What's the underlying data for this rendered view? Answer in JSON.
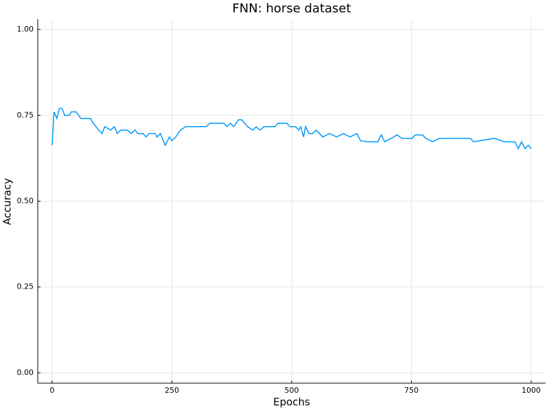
{
  "chart_data": {
    "type": "line",
    "title": "FNN: horse dataset",
    "x_label": "Epochs",
    "y_label": "Accuracy",
    "x": [
      0,
      4,
      10,
      15,
      21,
      26,
      36,
      40,
      50,
      60,
      80,
      86,
      97,
      104,
      110,
      122,
      130,
      136,
      143,
      157,
      165,
      173,
      179,
      190,
      196,
      202,
      215,
      219,
      226,
      236,
      245,
      250,
      258,
      268,
      279,
      300,
      322,
      329,
      358,
      365,
      372,
      379,
      389,
      396,
      408,
      419,
      426,
      433,
      443,
      465,
      472,
      490,
      496,
      508,
      515,
      519,
      525,
      529,
      536,
      544,
      551,
      558,
      565,
      579,
      594,
      608,
      622,
      636,
      644,
      658,
      680,
      687,
      694,
      708,
      720,
      730,
      751,
      758,
      773,
      780,
      794,
      808,
      873,
      880,
      923,
      944,
      966,
      973,
      980,
      987,
      994,
      1000
    ],
    "series": [
      {
        "name": "Accuracy",
        "color": "#009af9",
        "values": [
          0.663,
          0.76,
          0.741,
          0.77,
          0.77,
          0.75,
          0.75,
          0.76,
          0.76,
          0.741,
          0.741,
          0.727,
          0.707,
          0.697,
          0.717,
          0.707,
          0.717,
          0.697,
          0.707,
          0.707,
          0.697,
          0.707,
          0.697,
          0.697,
          0.687,
          0.697,
          0.697,
          0.687,
          0.697,
          0.663,
          0.687,
          0.676,
          0.687,
          0.707,
          0.717,
          0.717,
          0.717,
          0.727,
          0.727,
          0.717,
          0.727,
          0.717,
          0.737,
          0.737,
          0.717,
          0.707,
          0.717,
          0.707,
          0.717,
          0.717,
          0.727,
          0.727,
          0.717,
          0.717,
          0.707,
          0.717,
          0.687,
          0.717,
          0.697,
          0.697,
          0.707,
          0.697,
          0.687,
          0.697,
          0.687,
          0.697,
          0.687,
          0.697,
          0.676,
          0.673,
          0.673,
          0.693,
          0.673,
          0.683,
          0.693,
          0.683,
          0.683,
          0.693,
          0.693,
          0.683,
          0.673,
          0.683,
          0.683,
          0.673,
          0.683,
          0.673,
          0.673,
          0.653,
          0.673,
          0.653,
          0.663,
          0.653
        ]
      }
    ],
    "xlim": [
      -30,
      1030
    ],
    "ylim": [
      -0.03,
      1.03
    ],
    "xticks": [
      0,
      250,
      500,
      750,
      1000
    ],
    "yticks": [
      {
        "value": 0,
        "label": "0.00"
      },
      {
        "value": 0.25,
        "label": "0.25"
      },
      {
        "value": 0.5,
        "label": "0.50"
      },
      {
        "value": 0.75,
        "label": "0.75"
      },
      {
        "value": 1,
        "label": "1.00"
      }
    ],
    "grid": true
  }
}
